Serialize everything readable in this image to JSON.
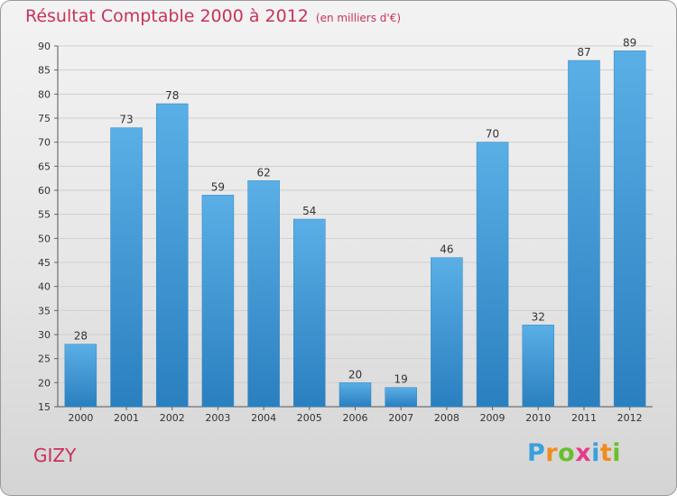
{
  "title": "Résultat Comptable 2000 à 2012",
  "subtitle": "(en milliers d'€)",
  "town": "GIZY",
  "brand": {
    "letters": [
      "P",
      "r",
      "o",
      "x",
      "i",
      "t",
      "i"
    ],
    "colors": [
      "#3aa0dc",
      "#f08c1e",
      "#6abf2e",
      "#e53c8c",
      "#3aa0dc",
      "#f08c1e",
      "#6abf2e"
    ]
  },
  "colors": {
    "bar_top": "#5aafe6",
    "bar_bottom": "#2a7fbf",
    "title": "#c8325a",
    "grid": "#cfcfcf"
  },
  "chart_data": {
    "type": "bar",
    "title": "Résultat Comptable 2000 à 2012",
    "subtitle": "(en milliers d'€)",
    "categories": [
      "2000",
      "2001",
      "2002",
      "2003",
      "2004",
      "2005",
      "2006",
      "2007",
      "2008",
      "2009",
      "2010",
      "2011",
      "2012"
    ],
    "values": [
      28,
      73,
      78,
      59,
      62,
      54,
      20,
      19,
      46,
      70,
      32,
      87,
      89
    ],
    "ylim": [
      15,
      90
    ],
    "yticks": [
      15,
      20,
      25,
      30,
      35,
      40,
      45,
      50,
      55,
      60,
      65,
      70,
      75,
      80,
      85,
      90
    ],
    "grid": true,
    "xlabel": "",
    "ylabel": ""
  }
}
